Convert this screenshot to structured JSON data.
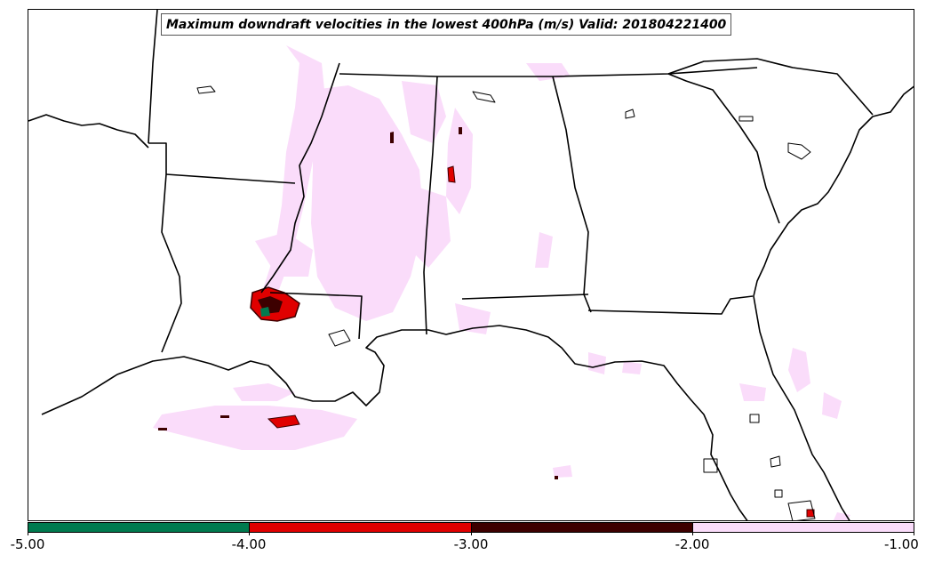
{
  "title": "Maximum downdraft velocities in the lowest 400hPa (m/s) Valid: 201804221400",
  "colorbar": {
    "ticks": [
      "-5.00",
      "-4.00",
      "-3.00",
      "-2.00",
      "-1.00"
    ],
    "segments": [
      {
        "range": "-5 to -4",
        "color": "#007a4f"
      },
      {
        "range": "-4 to -3",
        "color": "#e00000"
      },
      {
        "range": "-3 to -2",
        "color": "#3d0000"
      },
      {
        "range": "-2 to -1",
        "color": "#fadcfa"
      }
    ]
  },
  "colors": {
    "light_pink": "#fadcfa",
    "red": "#e00000",
    "dark_red": "#3d0000",
    "green": "#007a4f",
    "boundary": "#000000"
  }
}
